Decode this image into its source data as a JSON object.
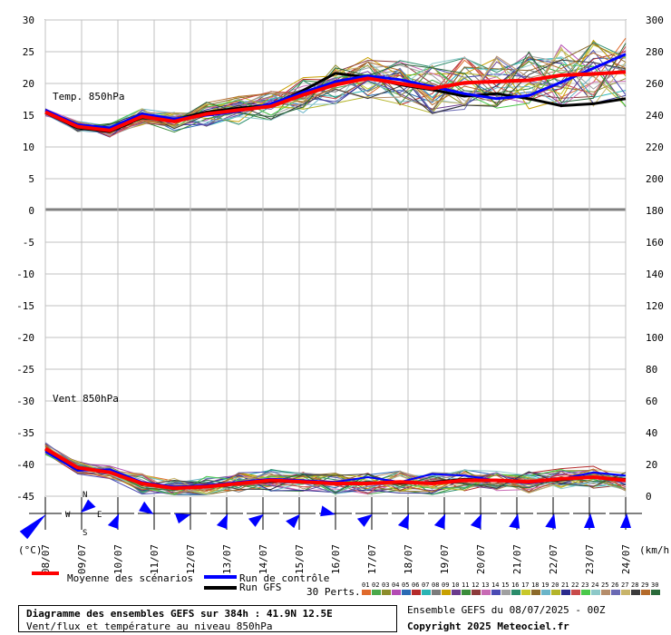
{
  "chart_data": {
    "type": "line",
    "x_dates": [
      "08/07",
      "09/07",
      "10/07",
      "11/07",
      "12/07",
      "13/07",
      "14/07",
      "15/07",
      "16/07",
      "17/07",
      "18/07",
      "19/07",
      "20/07",
      "21/07",
      "22/07",
      "23/07",
      "24/07"
    ],
    "y_left_ticks": [
      30,
      25,
      20,
      15,
      10,
      5,
      0,
      -5,
      -10,
      -15,
      -20,
      -25,
      -30,
      -35,
      -40,
      -45
    ],
    "y_right_ticks": [
      300,
      280,
      260,
      240,
      220,
      200,
      180,
      160,
      140,
      120,
      100,
      80,
      60,
      40,
      20,
      0
    ],
    "left_unit": "(°C)",
    "right_unit": "(km/h)",
    "temp_label": "Temp. 850hPa",
    "wind_label": "Vent 850hPa",
    "temp_mean": [
      15.5,
      13.2,
      12.6,
      14.8,
      14.0,
      15.2,
      15.8,
      16.4,
      18.2,
      19.8,
      20.8,
      20.0,
      19.2,
      20.1,
      20.3,
      20.5,
      21.3,
      21.5,
      21.8
    ],
    "temp_control": [
      15.8,
      13.5,
      13.0,
      15.2,
      14.4,
      15.0,
      15.6,
      16.8,
      18.6,
      20.3,
      21.2,
      20.6,
      19.5,
      18.4,
      17.6,
      18.1,
      20.2,
      22.4,
      24.6
    ],
    "temp_gfs": [
      15.4,
      13.0,
      12.4,
      14.6,
      14.3,
      15.5,
      16.1,
      16.6,
      18.9,
      21.6,
      21.0,
      19.8,
      19.0,
      18.0,
      18.4,
      17.6,
      16.5,
      16.8,
      17.6
    ],
    "wind_mean": [
      30,
      18,
      15,
      8,
      5,
      6,
      8,
      10,
      9,
      8,
      8,
      9,
      8,
      10,
      10,
      9,
      11,
      12,
      10
    ],
    "wind_control": [
      28,
      16,
      17,
      9,
      6,
      7,
      9,
      11,
      10,
      9,
      12,
      9,
      14,
      13,
      10,
      8,
      11,
      15,
      13
    ],
    "wind_gfs": [
      29,
      17,
      15,
      8,
      5,
      6,
      8,
      9,
      10,
      8,
      9,
      8,
      9,
      11,
      10,
      9,
      10,
      12,
      11
    ],
    "legend": {
      "mean": "Moyenne des scénarios",
      "control": "Run de contrôle",
      "gfs": "Run GFS",
      "perts": "30 Perts."
    },
    "pert_numbers": [
      "01",
      "02",
      "03",
      "04",
      "05",
      "06",
      "07",
      "08",
      "09",
      "10",
      "11",
      "12",
      "13",
      "14",
      "15",
      "16",
      "17",
      "18",
      "19",
      "20",
      "21",
      "22",
      "23",
      "24",
      "25",
      "26",
      "27",
      "28",
      "29",
      "30"
    ],
    "pert_colors": [
      "#e06a2c",
      "#4aa84a",
      "#8c8c2a",
      "#b44ab4",
      "#2a6ab4",
      "#b42a2a",
      "#2ab4b4",
      "#7a7a7a",
      "#c8a000",
      "#6a3a8c",
      "#3a8c3a",
      "#8c3a3a",
      "#c86ab4",
      "#4a4ab4",
      "#a0a0a0",
      "#2a8c6a",
      "#c8c82a",
      "#8c6a2a",
      "#6ab4c8",
      "#b4b42a",
      "#2a2a8c",
      "#c84a4a",
      "#4ac84a",
      "#8cc8c8",
      "#b48c6a",
      "#6a6ab4",
      "#c8b46a",
      "#3a3a3a",
      "#b46a2a",
      "#2a6a3a"
    ],
    "colors": {
      "mean": "#ff0000",
      "control": "#0000ff",
      "gfs": "#000000",
      "grid": "#c0c0c0",
      "wind": "#0000ff"
    }
  },
  "footer": {
    "title": "Diagramme des ensembles GEFS sur 384h : 41.9N 12.5E",
    "subtitle": "Vent/flux et température au niveau 850hPa",
    "run": "Ensemble GEFS du 08/07/2025 - 00Z",
    "copyright": "Copyright 2025 Meteociel.fr"
  },
  "wind_roses": {
    "compass": {
      "n": "N",
      "s": "S",
      "w": "W",
      "e": "E"
    },
    "directions": [
      225,
      45,
      200,
      300,
      250,
      200,
      230,
      220,
      280,
      230,
      200,
      200,
      200,
      190,
      190,
      180,
      180
    ]
  }
}
